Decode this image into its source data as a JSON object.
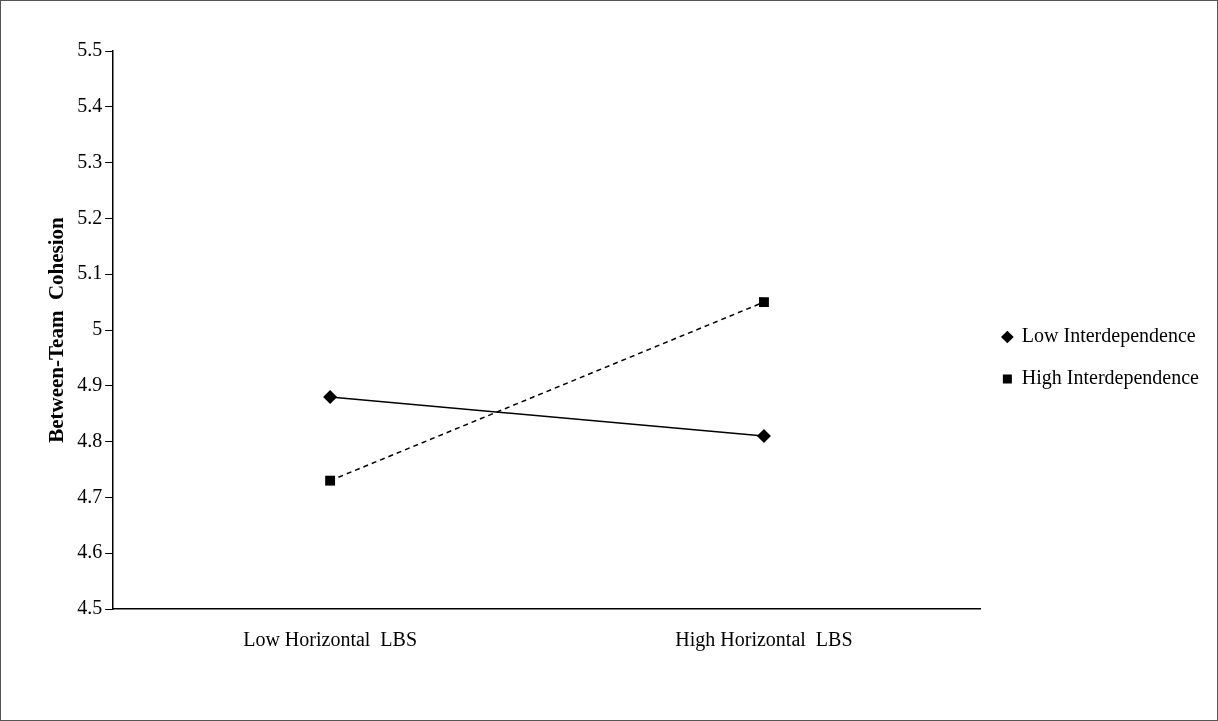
{
  "chart_data": {
    "type": "line",
    "ylabel": "Between-Team  Cohesion",
    "categories": [
      "Low Horizontal  LBS",
      "High Horizontal  LBS"
    ],
    "series": [
      {
        "name": "Low Interdependence",
        "color": "#000000",
        "values": [
          4.88,
          4.81
        ],
        "marker": "diamond",
        "line_style": "solid"
      },
      {
        "name": "High Interdependence",
        "color": "#000000",
        "values": [
          4.73,
          5.05
        ],
        "marker": "square",
        "line_style": "dashed"
      }
    ],
    "ylim": [
      4.5,
      5.5
    ],
    "yticks": [
      4.5,
      4.6,
      4.7,
      4.8,
      4.9,
      5,
      5.1,
      5.2,
      5.3,
      5.4,
      5.5
    ],
    "grid": false,
    "legend": "right"
  }
}
